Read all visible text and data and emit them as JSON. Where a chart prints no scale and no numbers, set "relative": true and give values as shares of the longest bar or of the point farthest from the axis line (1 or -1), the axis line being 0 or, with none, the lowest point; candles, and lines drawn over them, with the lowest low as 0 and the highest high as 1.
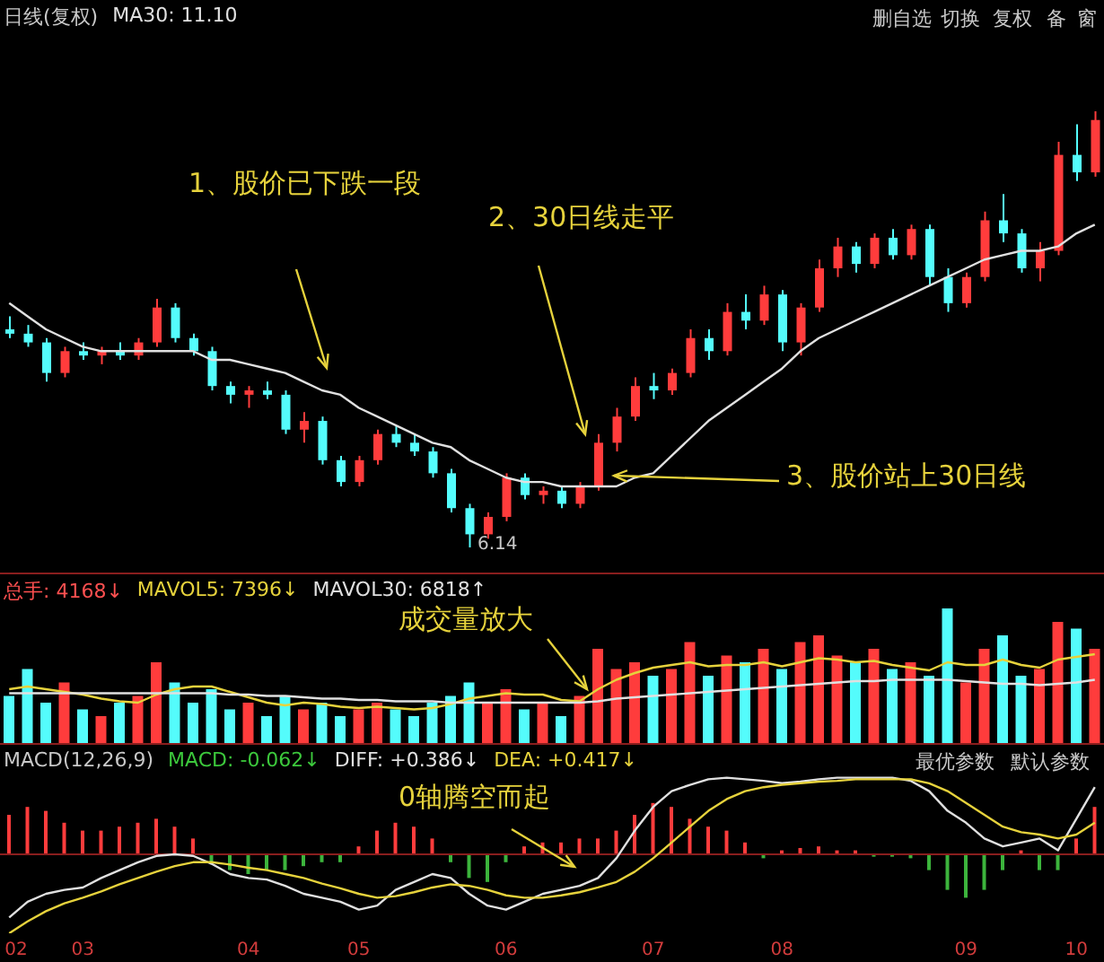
{
  "chart_data": [
    {
      "type": "candlestick",
      "title": "日线(复权)",
      "relative": true,
      "legend": "top left",
      "tick_labels": false,
      "categories": [
        "02",
        null,
        null,
        null,
        "03",
        null,
        null,
        null,
        null,
        null,
        null,
        null,
        null,
        "04",
        null,
        null,
        null,
        null,
        null,
        "05",
        null,
        null,
        null,
        null,
        null,
        null,
        null,
        "06",
        null,
        null,
        null,
        null,
        null,
        null,
        null,
        "07",
        null,
        null,
        null,
        null,
        null,
        null,
        "08",
        null,
        null,
        null,
        null,
        null,
        null,
        null,
        null,
        null,
        "09",
        null,
        null,
        null,
        null,
        null,
        "10",
        null
      ],
      "ohlc": [
        [
          0.5,
          0.53,
          0.48,
          0.49
        ],
        [
          0.49,
          0.51,
          0.46,
          0.47
        ],
        [
          0.47,
          0.48,
          0.38,
          0.4
        ],
        [
          0.4,
          0.46,
          0.39,
          0.45
        ],
        [
          0.45,
          0.47,
          0.43,
          0.44
        ],
        [
          0.44,
          0.46,
          0.42,
          0.45
        ],
        [
          0.45,
          0.47,
          0.43,
          0.44
        ],
        [
          0.44,
          0.48,
          0.43,
          0.47
        ],
        [
          0.47,
          0.57,
          0.46,
          0.55
        ],
        [
          0.55,
          0.56,
          0.47,
          0.48
        ],
        [
          0.48,
          0.49,
          0.44,
          0.45
        ],
        [
          0.45,
          0.46,
          0.36,
          0.37
        ],
        [
          0.37,
          0.38,
          0.33,
          0.35
        ],
        [
          0.35,
          0.37,
          0.32,
          0.36
        ],
        [
          0.36,
          0.38,
          0.34,
          0.35
        ],
        [
          0.35,
          0.36,
          0.26,
          0.27
        ],
        [
          0.27,
          0.31,
          0.24,
          0.29
        ],
        [
          0.29,
          0.3,
          0.19,
          0.2
        ],
        [
          0.2,
          0.21,
          0.14,
          0.15
        ],
        [
          0.15,
          0.21,
          0.14,
          0.2
        ],
        [
          0.2,
          0.27,
          0.19,
          0.26
        ],
        [
          0.26,
          0.28,
          0.23,
          0.24
        ],
        [
          0.24,
          0.26,
          0.21,
          0.22
        ],
        [
          0.22,
          0.23,
          0.16,
          0.17
        ],
        [
          0.17,
          0.18,
          0.08,
          0.09
        ],
        [
          0.09,
          0.1,
          0.0,
          0.03
        ],
        [
          0.03,
          0.08,
          0.02,
          0.07
        ],
        [
          0.07,
          0.17,
          0.06,
          0.16
        ],
        [
          0.16,
          0.17,
          0.11,
          0.12
        ],
        [
          0.12,
          0.14,
          0.1,
          0.13
        ],
        [
          0.13,
          0.14,
          0.09,
          0.1
        ],
        [
          0.1,
          0.15,
          0.09,
          0.14
        ],
        [
          0.14,
          0.26,
          0.13,
          0.24
        ],
        [
          0.24,
          0.32,
          0.22,
          0.3
        ],
        [
          0.3,
          0.39,
          0.29,
          0.37
        ],
        [
          0.37,
          0.4,
          0.34,
          0.36
        ],
        [
          0.36,
          0.41,
          0.35,
          0.4
        ],
        [
          0.4,
          0.5,
          0.39,
          0.48
        ],
        [
          0.48,
          0.5,
          0.43,
          0.45
        ],
        [
          0.45,
          0.56,
          0.44,
          0.54
        ],
        [
          0.54,
          0.58,
          0.5,
          0.52
        ],
        [
          0.52,
          0.6,
          0.51,
          0.58
        ],
        [
          0.58,
          0.59,
          0.45,
          0.47
        ],
        [
          0.47,
          0.56,
          0.44,
          0.55
        ],
        [
          0.55,
          0.66,
          0.54,
          0.64
        ],
        [
          0.64,
          0.71,
          0.62,
          0.69
        ],
        [
          0.69,
          0.7,
          0.63,
          0.65
        ],
        [
          0.65,
          0.72,
          0.64,
          0.71
        ],
        [
          0.71,
          0.73,
          0.66,
          0.67
        ],
        [
          0.67,
          0.74,
          0.66,
          0.73
        ],
        [
          0.73,
          0.74,
          0.6,
          0.62
        ],
        [
          0.62,
          0.64,
          0.54,
          0.56
        ],
        [
          0.56,
          0.63,
          0.55,
          0.62
        ],
        [
          0.62,
          0.77,
          0.61,
          0.75
        ],
        [
          0.75,
          0.81,
          0.7,
          0.72
        ],
        [
          0.72,
          0.73,
          0.63,
          0.64
        ],
        [
          0.64,
          0.7,
          0.61,
          0.68
        ],
        [
          0.68,
          0.93,
          0.67,
          0.9
        ],
        [
          0.9,
          0.97,
          0.84,
          0.86
        ],
        [
          0.86,
          1.0,
          0.85,
          0.98
        ]
      ],
      "colors": [
        "#54fcfc",
        "#54fcfc",
        "#54fcfc",
        "#ff3c3c",
        "#54fcfc",
        "#ff3c3c",
        "#54fcfc",
        "#ff3c3c",
        "#ff3c3c",
        "#54fcfc",
        "#54fcfc",
        "#54fcfc",
        "#54fcfc",
        "#ff3c3c",
        "#54fcfc",
        "#54fcfc",
        "#ff3c3c",
        "#54fcfc",
        "#54fcfc",
        "#ff3c3c",
        "#ff3c3c",
        "#54fcfc",
        "#54fcfc",
        "#54fcfc",
        "#54fcfc",
        "#54fcfc",
        "#ff3c3c",
        "#ff3c3c",
        "#54fcfc",
        "#ff3c3c",
        "#54fcfc",
        "#ff3c3c",
        "#ff3c3c",
        "#ff3c3c",
        "#ff3c3c",
        "#54fcfc",
        "#ff3c3c",
        "#ff3c3c",
        "#54fcfc",
        "#ff3c3c",
        "#54fcfc",
        "#ff3c3c",
        "#54fcfc",
        "#ff3c3c",
        "#ff3c3c",
        "#ff3c3c",
        "#54fcfc",
        "#ff3c3c",
        "#54fcfc",
        "#ff3c3c",
        "#54fcfc",
        "#54fcfc",
        "#ff3c3c",
        "#ff3c3c",
        "#54fcfc",
        "#54fcfc",
        "#ff3c3c",
        "#ff3c3c",
        "#54fcfc",
        "#ff3c3c"
      ],
      "series": [
        {
          "name": "MA30: 11.10",
          "type": "line",
          "color": "#e0e0e0",
          "values": [
            0.56,
            0.53,
            0.5,
            0.48,
            0.46,
            0.45,
            0.45,
            0.45,
            0.45,
            0.45,
            0.45,
            0.43,
            0.43,
            0.42,
            0.41,
            0.4,
            0.38,
            0.36,
            0.35,
            0.32,
            0.3,
            0.28,
            0.26,
            0.24,
            0.23,
            0.2,
            0.18,
            0.16,
            0.15,
            0.15,
            0.14,
            0.14,
            0.14,
            0.14,
            0.16,
            0.17,
            0.21,
            0.25,
            0.29,
            0.32,
            0.35,
            0.38,
            0.41,
            0.45,
            0.48,
            0.5,
            0.52,
            0.54,
            0.56,
            0.58,
            0.6,
            0.62,
            0.64,
            0.66,
            0.67,
            0.68,
            0.68,
            0.69,
            0.72,
            0.74
          ]
        }
      ],
      "annotations": [
        "1、股价已下跌一段",
        "2、30日线走平",
        "3、股价站上30日线",
        "6.14",
        "删自选",
        "切换",
        "复权",
        "备",
        "窗"
      ]
    },
    {
      "type": "bar",
      "relative": true,
      "legend": "top left",
      "tick_labels": false,
      "categories": [
        "02",
        null,
        null,
        null,
        "03",
        null,
        null,
        null,
        null,
        null,
        null,
        null,
        null,
        "04",
        null,
        null,
        null,
        null,
        null,
        "05",
        null,
        null,
        null,
        null,
        null,
        null,
        null,
        "06",
        null,
        null,
        null,
        null,
        null,
        null,
        null,
        "07",
        null,
        null,
        null,
        null,
        null,
        null,
        "08",
        null,
        null,
        null,
        null,
        null,
        null,
        null,
        null,
        null,
        "09",
        null,
        null,
        null,
        null,
        null,
        "10",
        null
      ],
      "series": [
        {
          "name": "总手: 4168↓",
          "color": "#ff5050",
          "colors": [
            "#54fcfc",
            "#54fcfc",
            "#54fcfc",
            "#ff3c3c",
            "#54fcfc",
            "#ff3c3c",
            "#54fcfc",
            "#ff3c3c",
            "#ff3c3c",
            "#54fcfc",
            "#54fcfc",
            "#54fcfc",
            "#54fcfc",
            "#ff3c3c",
            "#54fcfc",
            "#54fcfc",
            "#ff3c3c",
            "#54fcfc",
            "#54fcfc",
            "#ff3c3c",
            "#ff3c3c",
            "#54fcfc",
            "#54fcfc",
            "#54fcfc",
            "#54fcfc",
            "#54fcfc",
            "#ff3c3c",
            "#ff3c3c",
            "#54fcfc",
            "#ff3c3c",
            "#54fcfc",
            "#ff3c3c",
            "#ff3c3c",
            "#ff3c3c",
            "#ff3c3c",
            "#54fcfc",
            "#ff3c3c",
            "#ff3c3c",
            "#54fcfc",
            "#ff3c3c",
            "#54fcfc",
            "#ff3c3c",
            "#54fcfc",
            "#ff3c3c",
            "#ff3c3c",
            "#ff3c3c",
            "#54fcfc",
            "#ff3c3c",
            "#54fcfc",
            "#ff3c3c",
            "#54fcfc",
            "#54fcfc",
            "#ff3c3c",
            "#ff3c3c",
            "#54fcfc",
            "#54fcfc",
            "#ff3c3c",
            "#ff3c3c",
            "#54fcfc",
            "#ff3c3c"
          ],
          "values": [
            0.35,
            0.55,
            0.3,
            0.45,
            0.25,
            0.2,
            0.3,
            0.35,
            0.6,
            0.45,
            0.3,
            0.4,
            0.25,
            0.3,
            0.2,
            0.35,
            0.25,
            0.3,
            0.2,
            0.25,
            0.3,
            0.25,
            0.2,
            0.3,
            0.35,
            0.45,
            0.3,
            0.4,
            0.25,
            0.3,
            0.2,
            0.35,
            0.7,
            0.55,
            0.6,
            0.5,
            0.55,
            0.75,
            0.5,
            0.65,
            0.6,
            0.7,
            0.55,
            0.75,
            0.8,
            0.65,
            0.6,
            0.7,
            0.55,
            0.6,
            0.5,
            1.0,
            0.45,
            0.7,
            0.8,
            0.5,
            0.55,
            0.9,
            0.85,
            0.7
          ]
        },
        {
          "name": "MAVOL5: 7396↓",
          "type": "line",
          "color": "#e6d23c",
          "values": [
            0.4,
            0.42,
            0.4,
            0.38,
            0.36,
            0.33,
            0.31,
            0.3,
            0.36,
            0.4,
            0.42,
            0.42,
            0.38,
            0.34,
            0.3,
            0.28,
            0.3,
            0.29,
            0.27,
            0.26,
            0.27,
            0.26,
            0.25,
            0.26,
            0.29,
            0.33,
            0.35,
            0.37,
            0.36,
            0.36,
            0.32,
            0.31,
            0.4,
            0.47,
            0.52,
            0.56,
            0.58,
            0.6,
            0.57,
            0.58,
            0.58,
            0.6,
            0.57,
            0.6,
            0.63,
            0.62,
            0.6,
            0.61,
            0.58,
            0.56,
            0.54,
            0.6,
            0.58,
            0.58,
            0.62,
            0.58,
            0.56,
            0.62,
            0.64,
            0.66
          ]
        },
        {
          "name": "MAVOL30: 6818↑",
          "type": "line",
          "color": "#e0e0e0",
          "values": [
            0.37,
            0.37,
            0.37,
            0.37,
            0.37,
            0.37,
            0.37,
            0.37,
            0.37,
            0.37,
            0.37,
            0.37,
            0.36,
            0.36,
            0.35,
            0.35,
            0.34,
            0.33,
            0.33,
            0.32,
            0.32,
            0.31,
            0.31,
            0.31,
            0.3,
            0.3,
            0.3,
            0.3,
            0.3,
            0.3,
            0.3,
            0.3,
            0.31,
            0.33,
            0.34,
            0.35,
            0.36,
            0.37,
            0.38,
            0.39,
            0.4,
            0.41,
            0.42,
            0.43,
            0.44,
            0.45,
            0.46,
            0.46,
            0.47,
            0.47,
            0.47,
            0.47,
            0.46,
            0.45,
            0.44,
            0.44,
            0.43,
            0.44,
            0.45,
            0.47
          ]
        }
      ],
      "annotations": [
        "成交量放大"
      ]
    },
    {
      "type": "bar",
      "title": "MACD(12,26,9)",
      "relative": true,
      "legend": "top left",
      "tick_labels": "x",
      "categories": [
        "02",
        null,
        null,
        null,
        "03",
        null,
        null,
        null,
        null,
        null,
        null,
        null,
        null,
        "04",
        null,
        null,
        null,
        null,
        null,
        "05",
        null,
        null,
        null,
        null,
        null,
        null,
        null,
        "06",
        null,
        null,
        null,
        null,
        null,
        null,
        null,
        "07",
        null,
        null,
        null,
        null,
        null,
        null,
        "08",
        null,
        null,
        null,
        null,
        null,
        null,
        null,
        null,
        null,
        "09",
        null,
        null,
        null,
        null,
        null,
        "10",
        null
      ],
      "series": [
        {
          "name": "MACD: -0.062↓",
          "color": "#3cc83c",
          "colors": [
            "#ff3c3c",
            "#ff3c3c",
            "#ff3c3c",
            "#ff3c3c",
            "#ff3c3c",
            "#ff3c3c",
            "#ff3c3c",
            "#ff3c3c",
            "#ff3c3c",
            "#ff3c3c",
            "#ff3c3c",
            "#3cb43c",
            "#3cb43c",
            "#3cb43c",
            "#3cb43c",
            "#3cb43c",
            "#3cb43c",
            "#3cb43c",
            "#3cb43c",
            "#ff3c3c",
            "#ff3c3c",
            "#ff3c3c",
            "#ff3c3c",
            "#ff3c3c",
            "#3cb43c",
            "#3cb43c",
            "#3cb43c",
            "#3cb43c",
            "#ff3c3c",
            "#ff3c3c",
            "#ff3c3c",
            "#ff3c3c",
            "#ff3c3c",
            "#ff3c3c",
            "#ff3c3c",
            "#ff3c3c",
            "#ff3c3c",
            "#ff3c3c",
            "#ff3c3c",
            "#ff3c3c",
            "#ff3c3c",
            "#3cb43c",
            "#ff3c3c",
            "#ff3c3c",
            "#ff3c3c",
            "#ff3c3c",
            "#ff3c3c",
            "#3cb43c",
            "#3cb43c",
            "#3cb43c",
            "#3cb43c",
            "#3cb43c",
            "#3cb43c",
            "#3cb43c",
            "#3cb43c",
            "#ff3c3c",
            "#3cb43c",
            "#3cb43c",
            "#ff3c3c",
            "#ff3c3c"
          ],
          "values": [
            0.5,
            0.6,
            0.55,
            0.4,
            0.3,
            0.3,
            0.35,
            0.4,
            0.45,
            0.35,
            0.2,
            -0.1,
            -0.2,
            -0.25,
            -0.2,
            -0.2,
            -0.15,
            -0.1,
            -0.1,
            0.1,
            0.3,
            0.4,
            0.35,
            0.2,
            -0.1,
            -0.3,
            -0.35,
            -0.1,
            0.1,
            0.15,
            0.15,
            0.2,
            0.2,
            0.3,
            0.5,
            0.65,
            0.6,
            0.45,
            0.35,
            0.3,
            0.15,
            -0.05,
            0.05,
            0.08,
            0.1,
            0.05,
            0.05,
            -0.03,
            -0.03,
            -0.05,
            -0.2,
            -0.45,
            -0.55,
            -0.45,
            -0.2,
            0.05,
            -0.2,
            -0.2,
            0.2,
            0.6
          ]
        },
        {
          "name": "DIFF: +0.386↓",
          "type": "line",
          "color": "#e0e0e0",
          "values": [
            -0.8,
            -0.6,
            -0.5,
            -0.45,
            -0.42,
            -0.3,
            -0.2,
            -0.1,
            -0.02,
            0,
            -0.02,
            -0.12,
            -0.25,
            -0.3,
            -0.32,
            -0.4,
            -0.5,
            -0.55,
            -0.6,
            -0.7,
            -0.65,
            -0.45,
            -0.35,
            -0.25,
            -0.3,
            -0.5,
            -0.65,
            -0.7,
            -0.6,
            -0.5,
            -0.45,
            -0.4,
            -0.3,
            -0.05,
            0.3,
            0.6,
            0.8,
            0.88,
            0.95,
            0.97,
            0.95,
            0.93,
            0.9,
            0.92,
            0.95,
            0.97,
            0.97,
            0.97,
            0.97,
            0.93,
            0.8,
            0.55,
            0.4,
            0.2,
            0.1,
            0.15,
            0.2,
            0.05,
            0.45,
            0.85
          ]
        },
        {
          "name": "DEA: +0.417↓",
          "type": "line",
          "color": "#e6d23c",
          "values": [
            -1.0,
            -0.85,
            -0.72,
            -0.62,
            -0.55,
            -0.47,
            -0.38,
            -0.3,
            -0.22,
            -0.15,
            -0.1,
            -0.1,
            -0.13,
            -0.17,
            -0.2,
            -0.25,
            -0.3,
            -0.37,
            -0.43,
            -0.5,
            -0.55,
            -0.53,
            -0.48,
            -0.42,
            -0.38,
            -0.4,
            -0.45,
            -0.52,
            -0.55,
            -0.55,
            -0.52,
            -0.48,
            -0.42,
            -0.35,
            -0.22,
            -0.05,
            0.15,
            0.35,
            0.55,
            0.7,
            0.8,
            0.85,
            0.88,
            0.9,
            0.92,
            0.93,
            0.95,
            0.95,
            0.95,
            0.95,
            0.9,
            0.8,
            0.65,
            0.5,
            0.35,
            0.28,
            0.25,
            0.2,
            0.25,
            0.4
          ]
        }
      ],
      "ref_lines": [
        {
          "axis": "y",
          "value": 0,
          "color": "#8a1e1e"
        }
      ],
      "annotations": [
        "0轴腾空而起",
        "最优参数",
        "默认参数"
      ]
    }
  ]
}
